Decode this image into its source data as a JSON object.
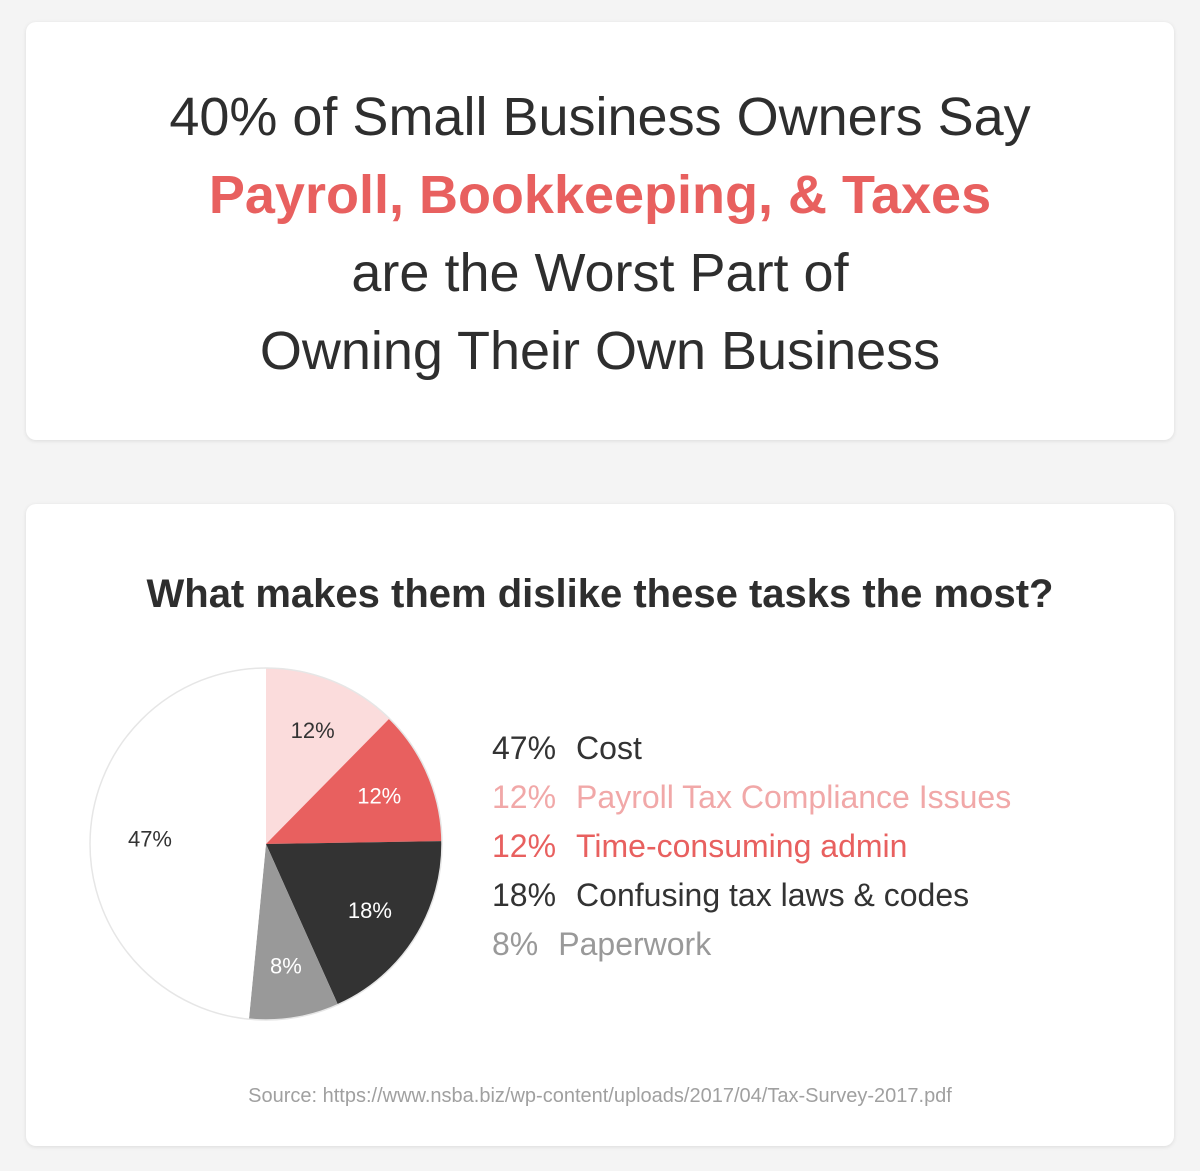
{
  "header": {
    "line1": "40% of Small Business Owners Say",
    "line2_highlight": "Payroll, Bookkeeping, & Taxes",
    "line3": "are the Worst Part of",
    "line4": "Owning Their Own Business",
    "highlight_color": "#e8605f"
  },
  "chart_data": {
    "type": "pie",
    "title": "What makes them dislike these tasks the most?",
    "slices": [
      {
        "label": "Payroll Tax Compliance Issues",
        "value": 12,
        "value_label": "12%",
        "color": "#fbdcdc",
        "text_color": "#333333",
        "legend_color": "#f1a8a8"
      },
      {
        "label": "Time-consuming admin",
        "value": 12,
        "value_label": "12%",
        "color": "#e8605f",
        "text_color": "#ffffff",
        "legend_color": "#e8605f"
      },
      {
        "label": "Confusing tax laws & codes",
        "value": 18,
        "value_label": "18%",
        "color": "#333333",
        "text_color": "#ffffff",
        "legend_color": "#333333"
      },
      {
        "label": "Paperwork",
        "value": 8,
        "value_label": "8%",
        "color": "#999999",
        "text_color": "#ffffff",
        "legend_color": "#999999"
      },
      {
        "label": "Cost",
        "value": 47,
        "value_label": "47%",
        "color": "#ffffff",
        "text_color": "#333333",
        "legend_color": "#333333"
      }
    ],
    "legend_order": [
      4,
      0,
      1,
      2,
      3
    ],
    "legend_placement": "right"
  },
  "source": "Source: https://www.nsba.biz/wp-content/uploads/2017/04/Tax-Survey-2017.pdf"
}
